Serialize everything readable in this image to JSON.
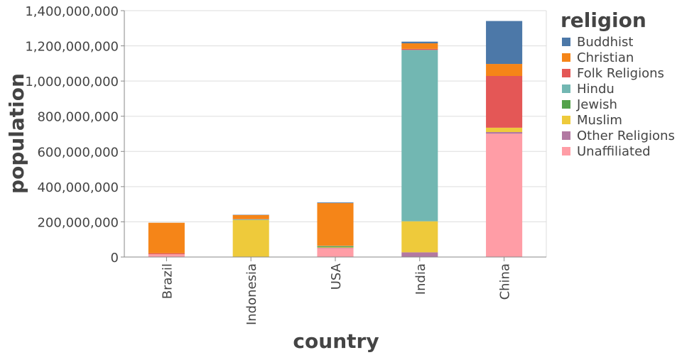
{
  "chart_data": {
    "type": "bar",
    "stacked": true,
    "orientation": "vertical",
    "xlabel": "country",
    "ylabel": "population",
    "categories": [
      "Brazil",
      "Indonesia",
      "USA",
      "India",
      "China"
    ],
    "ylim": [
      0,
      1400000000
    ],
    "yticks": [
      0,
      200000000,
      400000000,
      600000000,
      800000000,
      1000000000,
      1200000000,
      1400000000
    ],
    "ytick_labels": [
      "0",
      "200,000,000",
      "400,000,000",
      "600,000,000",
      "800,000,000",
      "1,000,000,000",
      "1,200,000,000",
      "1,400,000,000"
    ],
    "grid": true,
    "legend": {
      "title": "religion",
      "position": "right"
    },
    "stack_order": [
      "Unaffiliated",
      "Other Religions",
      "Muslim",
      "Jewish",
      "Hindu",
      "Folk Religions",
      "Christian",
      "Buddhist"
    ],
    "series": [
      {
        "name": "Buddhist",
        "color": "#4c78a8",
        "values": [
          200000,
          1700000,
          3600000,
          9300000,
          244000000
        ]
      },
      {
        "name": "Christian",
        "color": "#f58518",
        "values": [
          173300000,
          23400000,
          243000000,
          31800000,
          68400000
        ]
      },
      {
        "name": "Folk Religions",
        "color": "#e45756",
        "values": [
          5500000,
          900000,
          600000,
          5900000,
          294000000
        ]
      },
      {
        "name": "Hindu",
        "color": "#72b7b2",
        "values": [
          0,
          4000000,
          1800000,
          973800000,
          0
        ]
      },
      {
        "name": "Jewish",
        "color": "#54a24b",
        "values": [
          100000,
          0,
          5700000,
          0,
          0
        ]
      },
      {
        "name": "Muslim",
        "color": "#eeca3b",
        "values": [
          0,
          209100000,
          2800000,
          176200000,
          24700000
        ]
      },
      {
        "name": "Other Religions",
        "color": "#b279a2",
        "values": [
          400000,
          1300000,
          1900000,
          26800000,
          9400000
        ]
      },
      {
        "name": "Unaffiliated",
        "color": "#ff9da6",
        "values": [
          15400000,
          0,
          50600000,
          0,
          700700000
        ]
      }
    ]
  }
}
